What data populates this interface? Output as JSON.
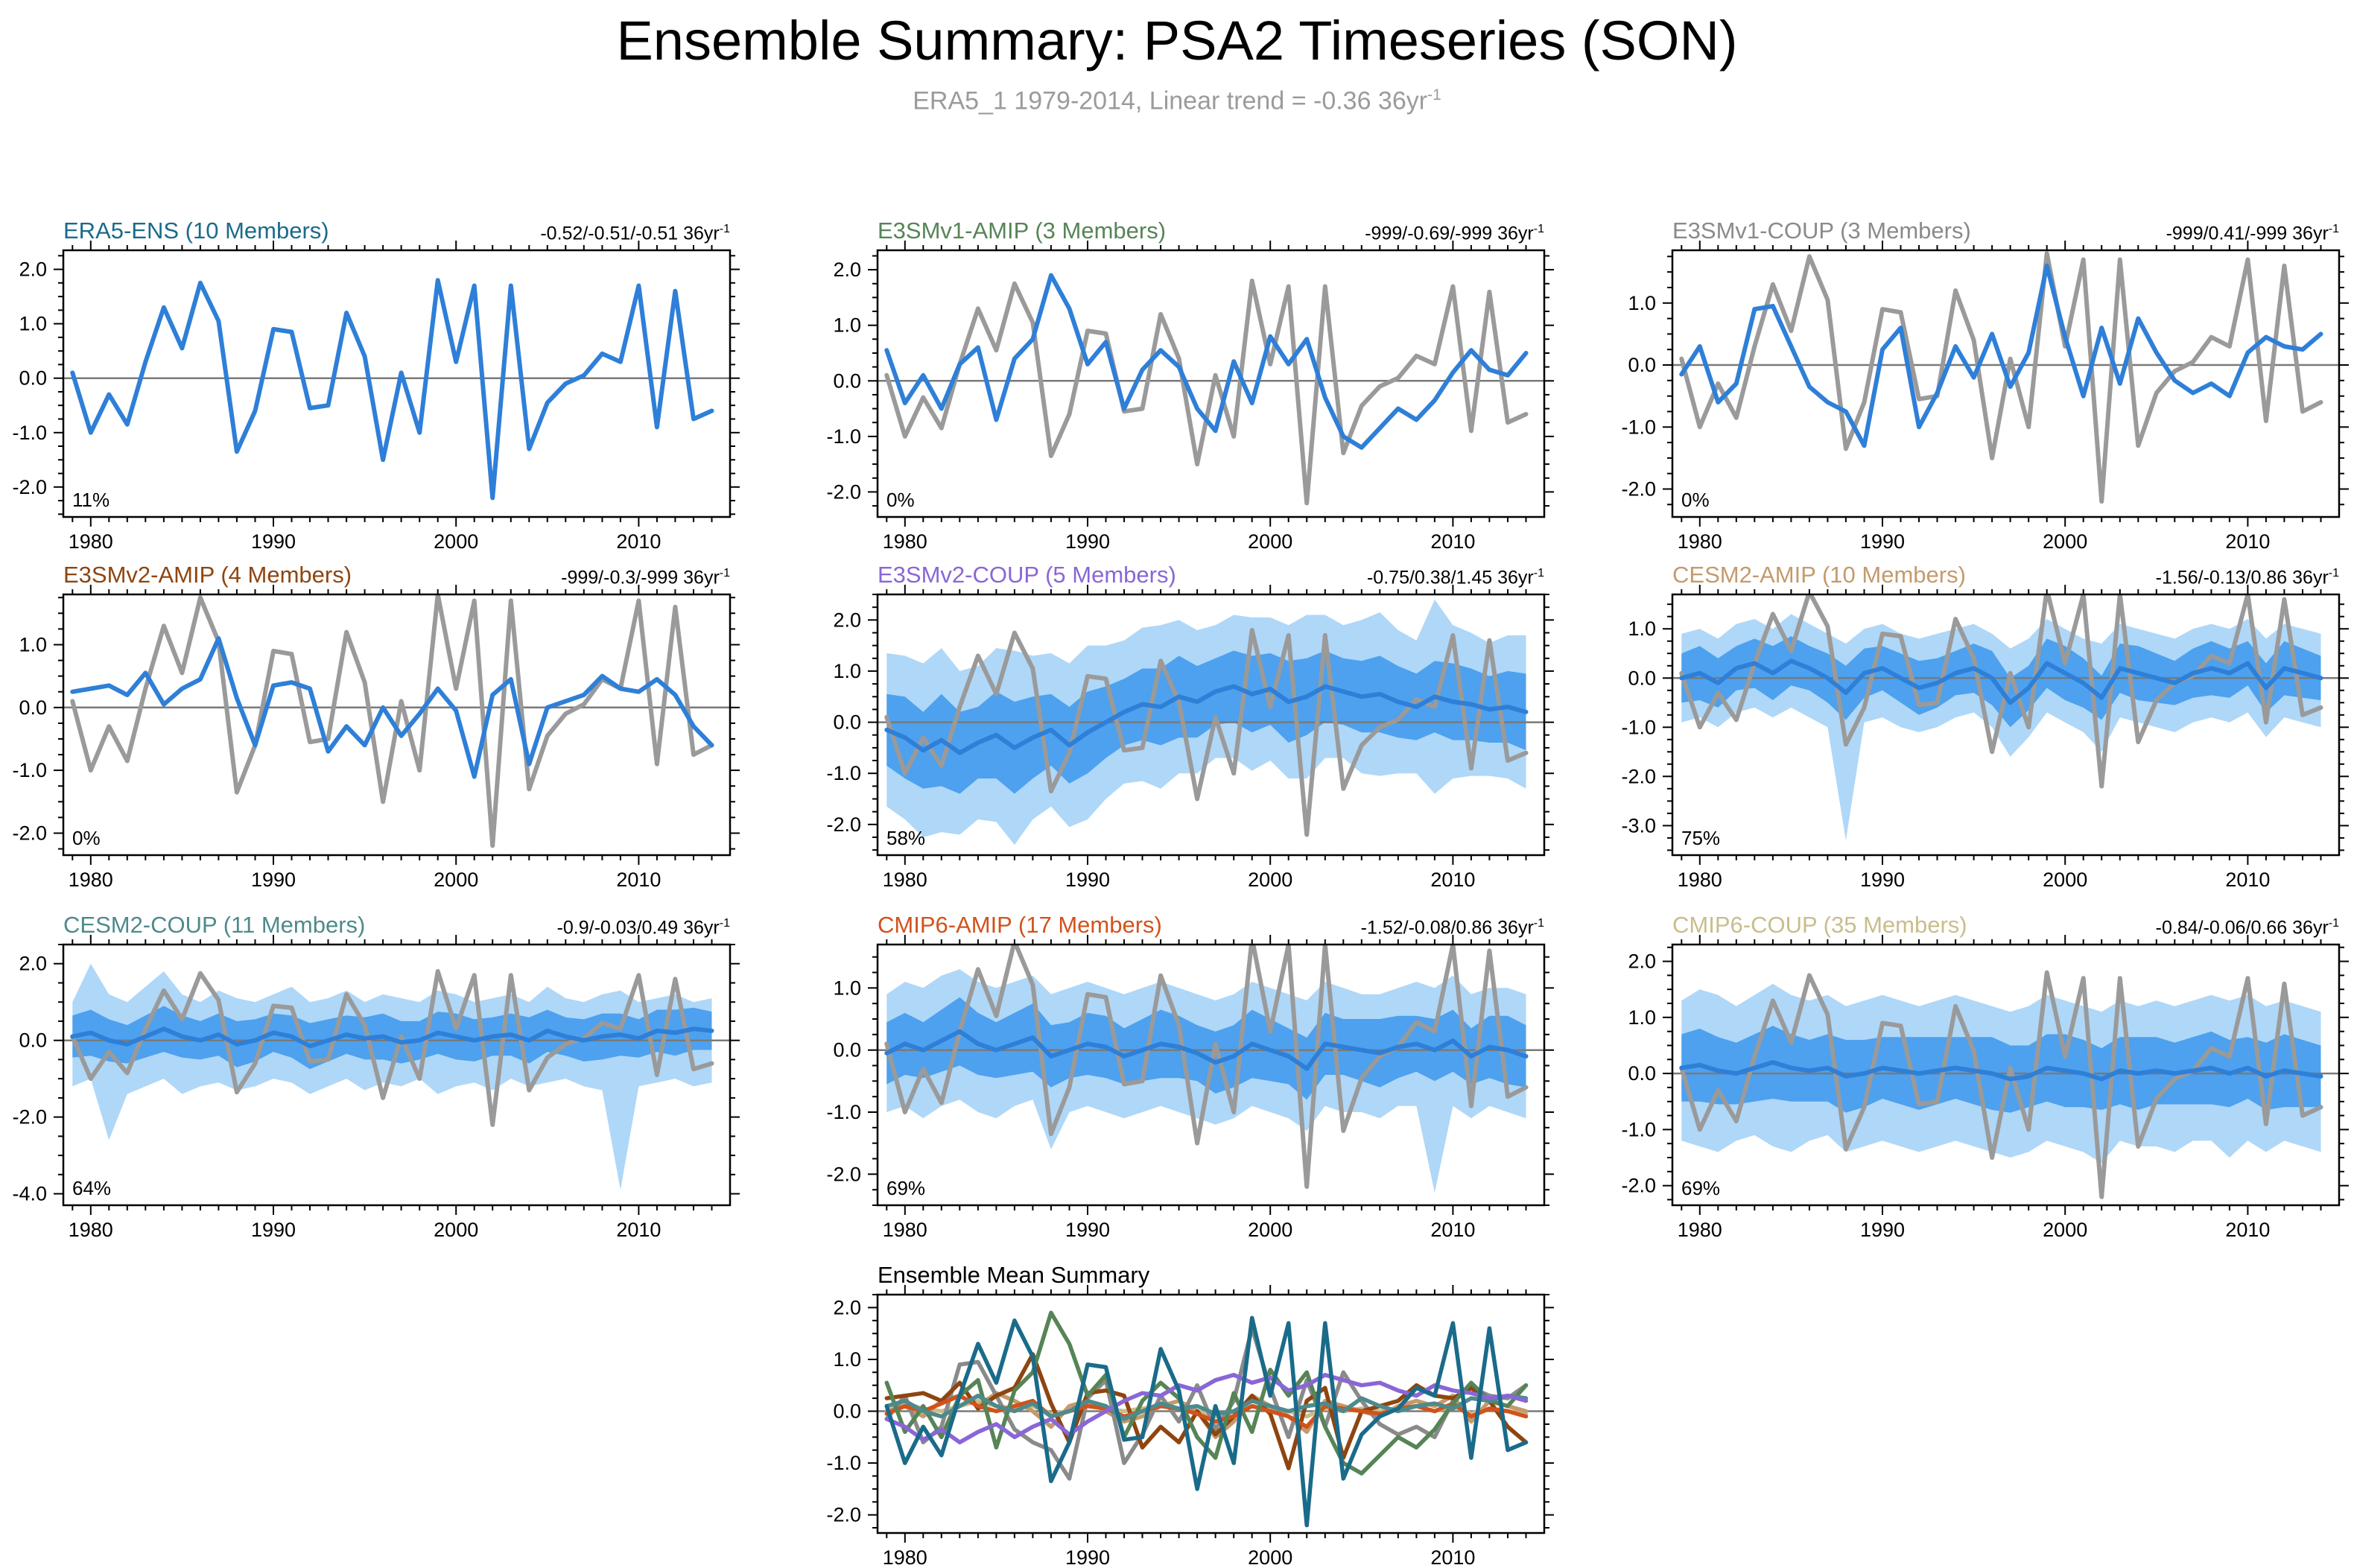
{
  "header": {
    "title": "Ensemble Summary: PSA2 Timeseries (SON)",
    "subtitle": "ERA5_1 1979-2014, Linear trend = -0.36 36yr",
    "subtitle_sup": "-1"
  },
  "chart_data": {
    "type": "line",
    "x_years": {
      "start": 1979,
      "end": 2014
    },
    "xlim": [
      1978.5,
      2015
    ],
    "x_major_ticks": [
      1980,
      1990,
      2000,
      2010
    ],
    "trend_sup": "-1",
    "colors": {
      "model_mean_line": "#2E7FD8",
      "ensemble_band_inner": "#4DA1EE",
      "ensemble_band_outer": "#AFD7F8",
      "observation_line": "#9A9A9A",
      "zero_line": "#7A7A7A"
    },
    "obs_series": {
      "name": "ERA5 observed",
      "values": [
        0.1,
        -1.0,
        -0.3,
        -0.85,
        0.3,
        1.3,
        0.55,
        1.75,
        1.05,
        -1.35,
        -0.6,
        0.9,
        0.85,
        -0.55,
        -0.5,
        1.2,
        0.4,
        -1.5,
        0.1,
        -1.0,
        1.8,
        0.3,
        1.7,
        -2.2,
        1.7,
        -1.3,
        -0.45,
        -0.1,
        0.05,
        0.45,
        0.3,
        1.7,
        -0.9,
        1.6,
        -0.75,
        -0.6
      ]
    },
    "panels": [
      {
        "id": "era5-ens",
        "title": "ERA5-ENS (10 Members)",
        "color": "#1A6B8A",
        "trend_label": "-0.52/-0.51/-0.51 36yr",
        "percent": "11%",
        "ylim": [
          -2.55,
          2.35
        ],
        "yticks": [
          -2,
          -1,
          0,
          1,
          2
        ],
        "mean": "obs",
        "show_obs": false
      },
      {
        "id": "e3smv1-amip",
        "title": "E3SMv1-AMIP (3 Members)",
        "color": "#568456",
        "trend_label": "-999/-0.69/-999 36yr",
        "percent": "0%",
        "ylim": [
          -2.45,
          2.35
        ],
        "yticks": [
          -2,
          -1,
          0,
          1,
          2
        ],
        "mean": [
          0.55,
          -0.4,
          0.1,
          -0.5,
          0.3,
          0.6,
          -0.7,
          0.4,
          0.75,
          1.9,
          1.3,
          0.3,
          0.7,
          -0.5,
          0.2,
          0.55,
          0.25,
          -0.5,
          -0.9,
          0.35,
          -0.4,
          0.8,
          0.3,
          0.75,
          -0.3,
          -1.0,
          -1.2,
          -0.85,
          -0.5,
          -0.7,
          -0.35,
          0.15,
          0.55,
          0.2,
          0.1,
          0.5
        ],
        "show_obs": true
      },
      {
        "id": "e3smv1-coup",
        "title": "E3SMv1-COUP (3 Members)",
        "color": "#8A8A8A",
        "trend_label": "-999/0.41/-999 36yr",
        "percent": "0%",
        "ylim": [
          -2.45,
          1.85
        ],
        "yticks": [
          -2,
          -1,
          0,
          1
        ],
        "mean": [
          -0.15,
          0.3,
          -0.6,
          -0.3,
          0.9,
          0.95,
          0.3,
          -0.35,
          -0.6,
          -0.75,
          -1.3,
          0.25,
          0.6,
          -1.0,
          -0.45,
          0.3,
          -0.2,
          0.5,
          -0.35,
          0.2,
          1.6,
          0.45,
          -0.5,
          0.6,
          -0.3,
          0.75,
          0.2,
          -0.25,
          -0.45,
          -0.3,
          -0.5,
          0.2,
          0.45,
          0.3,
          0.25,
          0.5
        ],
        "show_obs": true
      },
      {
        "id": "e3smv2-amip",
        "title": "E3SMv2-AMIP (4 Members)",
        "color": "#8E4510",
        "trend_label": "-999/-0.3/-999 36yr",
        "percent": "0%",
        "ylim": [
          -2.35,
          1.8
        ],
        "yticks": [
          -2,
          -1,
          0,
          1
        ],
        "mean": [
          0.25,
          0.3,
          0.35,
          0.2,
          0.55,
          0.05,
          0.3,
          0.45,
          1.1,
          0.15,
          -0.6,
          0.35,
          0.4,
          0.3,
          -0.7,
          -0.3,
          -0.6,
          0.0,
          -0.45,
          -0.1,
          0.3,
          -0.05,
          -1.1,
          0.2,
          0.45,
          -0.9,
          0.0,
          0.1,
          0.2,
          0.5,
          0.3,
          0.25,
          0.45,
          0.2,
          -0.3,
          -0.6
        ],
        "show_obs": true
      },
      {
        "id": "e3smv2-coup",
        "title": "E3SMv2-COUP (5 Members)",
        "color": "#8A66D6",
        "trend_label": "-0.75/0.38/1.45 36yr",
        "percent": "58%",
        "ylim": [
          -2.6,
          2.5
        ],
        "yticks": [
          -2,
          -1,
          0,
          1,
          2
        ],
        "mean": [
          -0.15,
          -0.3,
          -0.55,
          -0.35,
          -0.6,
          -0.4,
          -0.25,
          -0.5,
          -0.3,
          -0.15,
          -0.45,
          -0.2,
          0.0,
          0.2,
          0.35,
          0.3,
          0.5,
          0.4,
          0.6,
          0.7,
          0.55,
          0.65,
          0.4,
          0.5,
          0.7,
          0.6,
          0.5,
          0.55,
          0.4,
          0.3,
          0.5,
          0.4,
          0.35,
          0.25,
          0.3,
          0.2
        ],
        "band_outer_high": [
          1.35,
          1.3,
          1.15,
          1.45,
          1.0,
          1.1,
          1.45,
          1.4,
          1.3,
          1.35,
          1.15,
          1.5,
          1.5,
          1.6,
          1.85,
          1.9,
          2.0,
          1.8,
          1.9,
          2.1,
          2.05,
          2.05,
          1.9,
          2.1,
          2.1,
          1.9,
          2.0,
          2.15,
          1.8,
          1.6,
          2.4,
          1.9,
          1.75,
          1.55,
          1.7,
          1.7
        ],
        "band_outer_low": [
          -1.65,
          -1.9,
          -2.25,
          -2.15,
          -2.2,
          -1.9,
          -1.95,
          -2.4,
          -1.9,
          -1.65,
          -2.05,
          -1.9,
          -1.5,
          -1.2,
          -1.15,
          -1.3,
          -1.0,
          -1.0,
          -0.7,
          -0.7,
          -0.95,
          -0.75,
          -1.1,
          -1.1,
          -0.7,
          -0.7,
          -1.0,
          -1.05,
          -1.0,
          -1.0,
          -1.4,
          -1.1,
          -1.05,
          -1.05,
          -1.1,
          -1.3
        ],
        "band_inner_halfwidth": [
          0.7,
          0.8,
          0.75,
          0.9,
          0.8,
          0.7,
          0.85,
          0.9,
          0.8,
          0.7,
          0.75,
          0.8,
          0.7,
          0.65,
          0.7,
          0.75,
          0.8,
          0.7,
          0.65,
          0.7,
          0.75,
          0.7,
          0.8,
          0.75,
          0.7,
          0.65,
          0.7,
          0.75,
          0.7,
          0.65,
          0.7,
          0.75,
          0.7,
          0.65,
          0.7,
          0.75
        ],
        "show_obs": true
      },
      {
        "id": "cesm2-amip",
        "title": "CESM2-AMIP (10 Members)",
        "color": "#C49A6C",
        "trend_label": "-1.56/-0.13/0.86 36yr",
        "percent": "75%",
        "ylim": [
          -3.6,
          1.7
        ],
        "yticks": [
          -3,
          -2,
          -1,
          0,
          1
        ],
        "mean": [
          0.0,
          0.1,
          -0.1,
          0.2,
          0.3,
          0.1,
          0.35,
          0.2,
          0.0,
          -0.3,
          0.1,
          0.2,
          0.0,
          -0.2,
          -0.1,
          0.1,
          0.2,
          0.0,
          -0.5,
          -0.2,
          0.3,
          0.1,
          -0.1,
          -0.4,
          0.2,
          0.1,
          0.0,
          -0.1,
          0.1,
          0.2,
          0.1,
          0.3,
          -0.2,
          0.2,
          0.1,
          0.0
        ],
        "band_outer_high": [
          0.9,
          1.0,
          0.8,
          1.1,
          1.2,
          1.0,
          1.3,
          1.1,
          0.9,
          0.7,
          1.0,
          1.1,
          0.9,
          0.8,
          0.9,
          1.0,
          1.1,
          0.9,
          0.6,
          0.8,
          1.2,
          1.0,
          0.8,
          0.7,
          1.1,
          1.0,
          0.9,
          0.8,
          1.0,
          1.1,
          1.0,
          1.2,
          0.8,
          1.1,
          1.0,
          0.9
        ],
        "band_outer_low": [
          -0.9,
          -0.8,
          -1.0,
          -0.7,
          -0.6,
          -0.8,
          -0.6,
          -0.8,
          -1.0,
          -3.3,
          -0.9,
          -0.8,
          -1.0,
          -1.1,
          -1.0,
          -0.8,
          -0.7,
          -1.0,
          -1.6,
          -1.2,
          -0.7,
          -0.9,
          -1.1,
          -1.5,
          -0.8,
          -0.9,
          -1.0,
          -1.1,
          -0.9,
          -0.8,
          -0.9,
          -0.7,
          -1.2,
          -0.8,
          -0.9,
          -1.0
        ],
        "band_inner_halfwidth": [
          0.5,
          0.55,
          0.5,
          0.45,
          0.5,
          0.55,
          0.5,
          0.45,
          0.5,
          0.55,
          0.5,
          0.45,
          0.5,
          0.55,
          0.5,
          0.45,
          0.5,
          0.55,
          0.5,
          0.45,
          0.5,
          0.55,
          0.5,
          0.45,
          0.5,
          0.55,
          0.5,
          0.45,
          0.5,
          0.55,
          0.5,
          0.45,
          0.5,
          0.55,
          0.5,
          0.45
        ],
        "show_obs": true
      },
      {
        "id": "cesm2-coup",
        "title": "CESM2-COUP (11 Members)",
        "color": "#4E8A8C",
        "trend_label": "-0.9/-0.03/0.49 36yr",
        "percent": "64%",
        "ylim": [
          -4.3,
          2.5
        ],
        "yticks": [
          -4,
          -2,
          0,
          2
        ],
        "mean": [
          0.1,
          0.2,
          0.0,
          -0.1,
          0.1,
          0.3,
          0.1,
          0.0,
          0.15,
          -0.1,
          0.0,
          0.2,
          0.1,
          -0.15,
          0.0,
          0.15,
          0.05,
          0.1,
          -0.05,
          0.0,
          0.2,
          0.1,
          0.0,
          0.1,
          0.15,
          0.0,
          0.25,
          0.1,
          0.0,
          0.1,
          0.15,
          0.05,
          0.25,
          0.2,
          0.3,
          0.25
        ],
        "band_outer_high": [
          1.0,
          2.0,
          1.2,
          1.0,
          1.4,
          1.8,
          1.2,
          1.0,
          1.3,
          1.1,
          1.0,
          1.2,
          1.4,
          1.0,
          1.1,
          1.3,
          1.0,
          1.2,
          1.1,
          1.0,
          1.3,
          1.2,
          1.0,
          1.1,
          1.2,
          1.0,
          1.4,
          1.1,
          1.0,
          1.2,
          1.3,
          1.0,
          1.1,
          1.2,
          1.0,
          1.1
        ],
        "band_outer_low": [
          -1.2,
          -1.0,
          -2.6,
          -1.4,
          -1.2,
          -1.0,
          -1.4,
          -1.2,
          -1.1,
          -1.3,
          -1.2,
          -1.0,
          -1.1,
          -1.4,
          -1.2,
          -1.0,
          -1.3,
          -1.1,
          -1.2,
          -1.0,
          -1.4,
          -1.2,
          -1.1,
          -1.3,
          -1.0,
          -1.2,
          -1.1,
          -1.0,
          -1.2,
          -1.3,
          -3.9,
          -1.2,
          -1.1,
          -1.0,
          -1.2,
          -1.1
        ],
        "band_inner_halfwidth": [
          0.55,
          0.6,
          0.55,
          0.5,
          0.55,
          0.6,
          0.55,
          0.5,
          0.55,
          0.6,
          0.55,
          0.5,
          0.55,
          0.6,
          0.55,
          0.5,
          0.55,
          0.6,
          0.55,
          0.5,
          0.55,
          0.6,
          0.55,
          0.5,
          0.55,
          0.6,
          0.55,
          0.5,
          0.55,
          0.6,
          0.55,
          0.5,
          0.55,
          0.6,
          0.55,
          0.5
        ],
        "show_obs": true
      },
      {
        "id": "cmip6-amip",
        "title": "CMIP6-AMIP (17 Members)",
        "color": "#D2521C",
        "trend_label": "-1.52/-0.08/0.86 36yr",
        "percent": "69%",
        "ylim": [
          -2.5,
          1.7
        ],
        "yticks": [
          -2,
          -1,
          0,
          1
        ],
        "mean": [
          -0.05,
          0.1,
          0.0,
          0.15,
          0.3,
          0.1,
          0.0,
          0.1,
          0.2,
          -0.1,
          0.0,
          0.1,
          0.05,
          -0.1,
          0.0,
          0.1,
          0.05,
          -0.05,
          -0.2,
          -0.1,
          0.1,
          0.0,
          -0.1,
          -0.3,
          0.1,
          0.05,
          0.0,
          -0.05,
          0.05,
          0.1,
          0.0,
          0.15,
          -0.1,
          0.05,
          0.0,
          -0.1
        ],
        "band_outer_high": [
          0.9,
          1.1,
          1.0,
          1.2,
          1.3,
          1.1,
          1.0,
          1.1,
          1.2,
          0.9,
          1.0,
          1.1,
          1.0,
          0.9,
          1.0,
          1.1,
          1.0,
          0.9,
          0.8,
          0.9,
          1.1,
          1.0,
          0.9,
          0.8,
          1.1,
          1.0,
          0.9,
          0.9,
          1.0,
          1.1,
          1.0,
          1.2,
          0.9,
          1.0,
          1.0,
          0.9
        ],
        "band_outer_low": [
          -1.0,
          -0.9,
          -1.1,
          -0.9,
          -0.8,
          -1.0,
          -1.1,
          -0.9,
          -0.8,
          -1.6,
          -1.0,
          -0.9,
          -1.0,
          -1.1,
          -1.0,
          -0.9,
          -1.0,
          -1.1,
          -1.2,
          -1.1,
          -0.9,
          -1.0,
          -1.1,
          -1.3,
          -0.9,
          -1.0,
          -1.0,
          -1.1,
          -0.9,
          -0.9,
          -2.3,
          -0.9,
          -1.1,
          -0.9,
          -1.0,
          -1.1
        ],
        "band_inner_halfwidth": [
          0.5,
          0.5,
          0.45,
          0.5,
          0.55,
          0.5,
          0.45,
          0.5,
          0.55,
          0.5,
          0.45,
          0.5,
          0.5,
          0.45,
          0.5,
          0.55,
          0.5,
          0.45,
          0.5,
          0.5,
          0.55,
          0.5,
          0.45,
          0.5,
          0.5,
          0.45,
          0.5,
          0.55,
          0.5,
          0.45,
          0.5,
          0.5,
          0.45,
          0.5,
          0.55,
          0.5
        ],
        "show_obs": true
      },
      {
        "id": "cmip6-coup",
        "title": "CMIP6-COUP (35 Members)",
        "color": "#C9BD8B",
        "trend_label": "-0.84/-0.06/0.66 36yr",
        "percent": "69%",
        "ylim": [
          -2.35,
          2.3
        ],
        "yticks": [
          -2,
          -1,
          0,
          1,
          2
        ],
        "mean": [
          0.1,
          0.15,
          0.05,
          0.0,
          0.1,
          0.2,
          0.1,
          0.05,
          0.1,
          -0.05,
          0.0,
          0.1,
          0.05,
          0.0,
          0.05,
          0.1,
          0.05,
          0.0,
          -0.1,
          -0.05,
          0.1,
          0.05,
          0.0,
          -0.1,
          0.05,
          0.0,
          0.05,
          0.0,
          0.05,
          0.1,
          0.0,
          0.1,
          -0.05,
          0.05,
          0.0,
          -0.05
        ],
        "band_outer_high": [
          1.3,
          1.5,
          1.4,
          1.2,
          1.4,
          1.6,
          1.4,
          1.3,
          1.4,
          1.2,
          1.3,
          1.4,
          1.3,
          1.2,
          1.3,
          1.4,
          1.3,
          1.2,
          1.1,
          1.2,
          1.4,
          1.3,
          1.2,
          1.1,
          1.3,
          1.2,
          1.3,
          1.2,
          1.3,
          1.4,
          1.3,
          1.4,
          1.2,
          1.3,
          1.2,
          1.1
        ],
        "band_outer_low": [
          -1.2,
          -1.3,
          -1.4,
          -1.2,
          -1.1,
          -1.3,
          -1.4,
          -1.2,
          -1.1,
          -1.4,
          -1.3,
          -1.2,
          -1.3,
          -1.4,
          -1.3,
          -1.2,
          -1.3,
          -1.4,
          -1.5,
          -1.4,
          -1.2,
          -1.3,
          -1.4,
          -1.6,
          -1.2,
          -1.3,
          -1.3,
          -1.4,
          -1.2,
          -1.2,
          -1.5,
          -1.2,
          -1.4,
          -1.2,
          -1.3,
          -1.4
        ],
        "band_inner_halfwidth": [
          0.6,
          0.65,
          0.6,
          0.55,
          0.6,
          0.65,
          0.6,
          0.55,
          0.6,
          0.65,
          0.6,
          0.55,
          0.6,
          0.65,
          0.6,
          0.55,
          0.6,
          0.65,
          0.6,
          0.55,
          0.6,
          0.65,
          0.6,
          0.55,
          0.6,
          0.65,
          0.6,
          0.55,
          0.6,
          0.65,
          0.6,
          0.55,
          0.6,
          0.65,
          0.6,
          0.55
        ],
        "show_obs": true
      }
    ],
    "summary": {
      "title": "Ensemble Mean Summary",
      "ylim": [
        -2.35,
        2.25
      ],
      "yticks": [
        -2,
        -1,
        0,
        1,
        2
      ],
      "series_refs": [
        "cmip6-coup",
        "cesm2-amip",
        "e3smv1-coup",
        "e3smv2-amip",
        "cmip6-amip",
        "e3smv1-amip",
        "cesm2-coup",
        "e3smv2-coup",
        "era5-ens"
      ]
    }
  }
}
